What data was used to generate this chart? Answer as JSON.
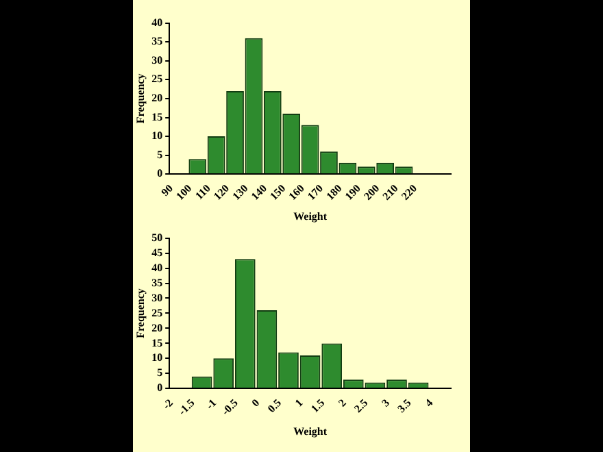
{
  "chart_data": [
    {
      "type": "histogram",
      "xlabel": "Weight",
      "ylabel": "Frequency",
      "bins": [
        90,
        100,
        110,
        120,
        130,
        140,
        150,
        160,
        170,
        180,
        190,
        200,
        210,
        220
      ],
      "values": [
        0,
        4,
        10,
        22,
        36,
        22,
        16,
        13,
        6,
        3,
        2,
        3,
        2
      ],
      "color": "#2e8b2e",
      "xlim": [
        90,
        240
      ],
      "xticks": [
        90,
        100,
        110,
        120,
        130,
        140,
        150,
        160,
        170,
        180,
        190,
        200,
        210,
        220
      ],
      "ylim": [
        0,
        40
      ],
      "yticks": [
        0,
        5,
        10,
        15,
        20,
        25,
        30,
        35,
        40
      ],
      "grid": false,
      "legend": false
    },
    {
      "type": "histogram",
      "xlabel": "Weight",
      "ylabel": "Frequency",
      "bins": [
        -2,
        -1.5,
        -1,
        -0.5,
        0,
        0.5,
        1,
        1.5,
        2,
        2.5,
        3,
        3.5,
        4
      ],
      "values": [
        0,
        4,
        10,
        43,
        26,
        12,
        11,
        15,
        3,
        2,
        3,
        2
      ],
      "color": "#2e8b2e",
      "xlim": [
        -2,
        4.5
      ],
      "xticks": [
        -2,
        -1.5,
        -1,
        -0.5,
        0,
        0.5,
        1,
        1.5,
        2,
        2.5,
        3,
        3.5,
        4
      ],
      "ylim": [
        0,
        50
      ],
      "yticks": [
        0,
        5,
        10,
        15,
        20,
        25,
        30,
        35,
        40,
        45,
        50
      ],
      "grid": false,
      "legend": false
    }
  ]
}
